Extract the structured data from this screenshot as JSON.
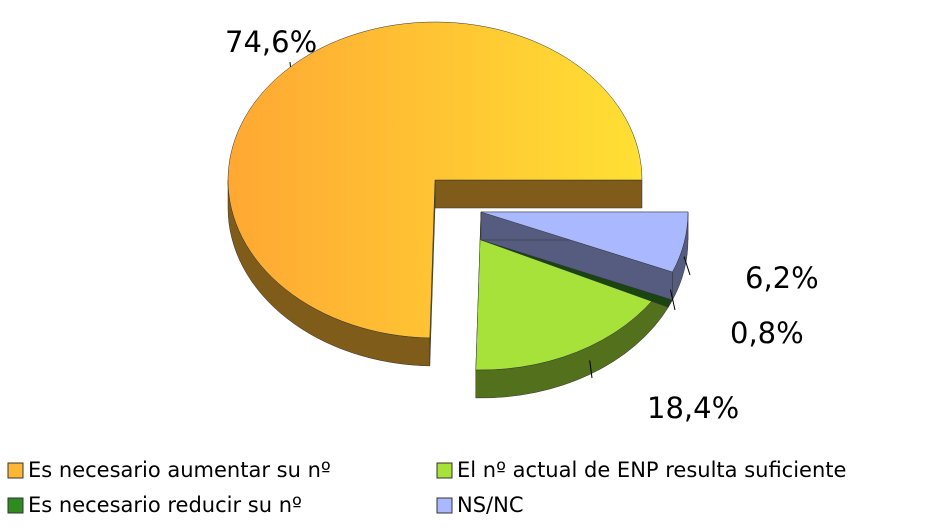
{
  "chart_data": {
    "type": "pie",
    "categories": [
      "Es necesario aumentar su nº",
      "El nº actual de ENP resulta suficiente",
      "Es necesario reducir su nº",
      "NS/NC"
    ],
    "values": [
      74.6,
      18.4,
      0.8,
      6.2
    ],
    "value_labels": [
      "74,6%",
      "18,4%",
      "0,8%",
      "6,2%"
    ],
    "colors": [
      "#ffb733",
      "#a6e23a",
      "#2f8a1f",
      "#a9b8ff"
    ],
    "legend": "bottom"
  }
}
